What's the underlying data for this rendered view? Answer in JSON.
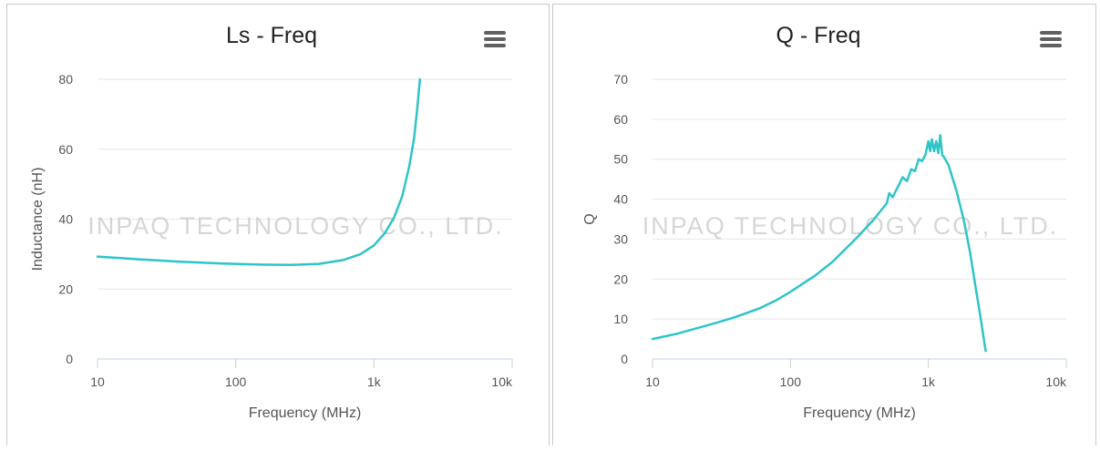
{
  "watermark": {
    "text": "INPAQ TECHNOLOGY CO., LTD."
  },
  "chart_data": [
    {
      "type": "line",
      "title": "Ls - Freq",
      "xlabel": "Frequency (MHz)",
      "ylabel": "Inductance (nH)",
      "x_scale": "log",
      "xlim": [
        10,
        10000
      ],
      "ylim": [
        0,
        80
      ],
      "x_ticks": [
        10,
        100,
        1000,
        10000
      ],
      "x_tick_labels": [
        "10",
        "100",
        "1k",
        "10k"
      ],
      "y_ticks": [
        0,
        20,
        40,
        60,
        80
      ],
      "y_tick_labels": [
        "0",
        "20",
        "40",
        "60",
        "80"
      ],
      "grid": "horizontal",
      "color": "#2ec4c8",
      "series": [
        {
          "x": [
            10,
            20,
            40,
            80,
            150,
            250,
            400,
            600,
            800,
            1000,
            1200,
            1400,
            1600,
            1800,
            1950,
            2050,
            2150
          ],
          "y": [
            29.3,
            28.5,
            27.8,
            27.3,
            27.0,
            26.9,
            27.2,
            28.3,
            30.0,
            32.5,
            36.0,
            40.5,
            46.5,
            55.0,
            63.0,
            71.0,
            80.0
          ]
        }
      ]
    },
    {
      "type": "line",
      "title": "Q - Freq",
      "xlabel": "Frequency (MHz)",
      "ylabel": "Q",
      "x_scale": "log",
      "xlim": [
        10,
        10000
      ],
      "ylim": [
        0,
        70
      ],
      "x_ticks": [
        10,
        100,
        1000,
        10000
      ],
      "x_tick_labels": [
        "10",
        "100",
        "1k",
        "10k"
      ],
      "y_ticks": [
        0,
        10,
        20,
        30,
        40,
        50,
        60,
        70
      ],
      "y_tick_labels": [
        "0",
        "10",
        "20",
        "30",
        "40",
        "50",
        "60",
        "70"
      ],
      "grid": "horizontal",
      "color": "#2ec4c8",
      "series": [
        {
          "x": [
            10,
            15,
            20,
            30,
            40,
            60,
            80,
            100,
            150,
            200,
            300,
            400,
            500,
            520,
            550,
            600,
            650,
            700,
            750,
            800,
            850,
            900,
            950,
            1000,
            1030,
            1060,
            1100,
            1140,
            1180,
            1220,
            1260,
            1300,
            1400,
            1600,
            1800,
            2000,
            2200,
            2400,
            2600
          ],
          "y": [
            5,
            6.3,
            7.5,
            9.2,
            10.5,
            12.7,
            14.8,
            16.8,
            20.8,
            24.2,
            30.2,
            34.8,
            39.0,
            41.5,
            40.5,
            43.0,
            45.5,
            44.5,
            47.5,
            47.0,
            50.0,
            49.5,
            51.0,
            54.5,
            52.0,
            55.0,
            52.0,
            54.5,
            51.5,
            56.0,
            51.0,
            50.5,
            48.5,
            42.0,
            35.0,
            27.0,
            18.0,
            10.0,
            2.0
          ]
        }
      ]
    }
  ]
}
